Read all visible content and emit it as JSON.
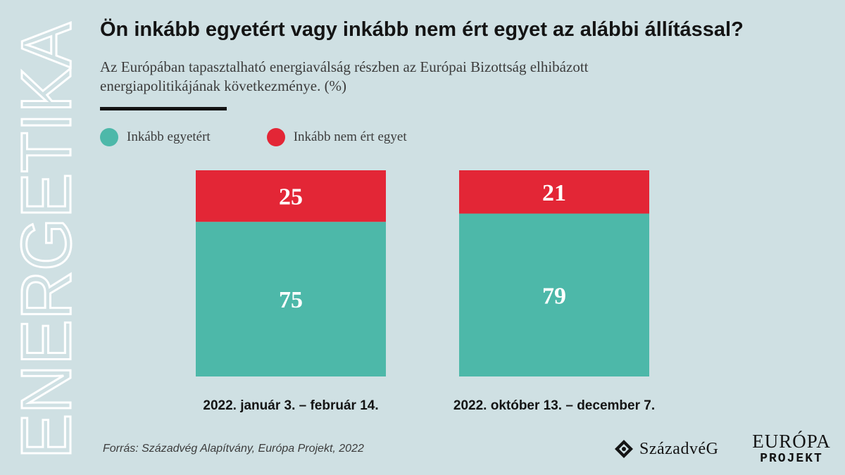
{
  "side_label": "ENERGETIKA",
  "colors": {
    "agree": "#4db8a9",
    "disagree": "#e32636",
    "background": "#cfe0e3"
  },
  "chart_data": {
    "type": "bar",
    "stacked": true,
    "title": "Ön inkább egyetért vagy inkább nem ért egyet az alábbi állítással?",
    "subtitle": "Az Európában tapasztalható energiaválság részben az Európai Bizottság elhibázott energiapolitikájának következménye. (%)",
    "categories": [
      "2022. január 3. – február 14.",
      "2022. október 13. – december 7."
    ],
    "series": [
      {
        "name": "Inkább egyetért",
        "color": "#4db8a9",
        "values": [
          75,
          79
        ]
      },
      {
        "name": "Inkább nem ért egyet",
        "color": "#e32636",
        "values": [
          25,
          21
        ]
      }
    ],
    "ylim": [
      0,
      100
    ],
    "xlabel": "",
    "ylabel": "",
    "legend": "top-left",
    "grid": false
  },
  "footer": {
    "source": "Forrás: Századvég Alapítvány, Európa Projekt, 2022",
    "logo_szazadveg": "SzázadvéG",
    "logo_europa_top": "EURÓPA",
    "logo_europa_bottom": "PROJEKT"
  }
}
